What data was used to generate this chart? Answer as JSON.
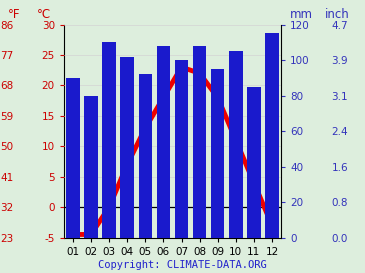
{
  "months": [
    "01",
    "02",
    "03",
    "04",
    "05",
    "06",
    "07",
    "08",
    "09",
    "10",
    "11",
    "12"
  ],
  "temperature_C": [
    -4.5,
    -4.5,
    0.0,
    7.0,
    13.0,
    18.0,
    23.0,
    22.0,
    18.0,
    11.0,
    4.0,
    -3.0
  ],
  "precipitation_mm": [
    90,
    80,
    110,
    102,
    92,
    108,
    100,
    108,
    95,
    105,
    85,
    115
  ],
  "bar_color": "#1a1acc",
  "line_color": "#ee0000",
  "left_axis_color": "#cc0000",
  "right_axis_color": "#3333bb",
  "background_color": "#ddeedd",
  "plot_bg_color": "#ddeedd",
  "temp_ylim": [
    -5,
    30
  ],
  "temp_yticks": [
    -5,
    0,
    5,
    10,
    15,
    20,
    25,
    30
  ],
  "temp_yticklabels_C": [
    "-5",
    "0",
    "5",
    "10",
    "15",
    "20",
    "25",
    "30"
  ],
  "temp_yticklabels_F": [
    "23",
    "32",
    "41",
    "50",
    "59",
    "68",
    "77",
    "86"
  ],
  "precip_ylim": [
    0,
    120
  ],
  "precip_yticks": [
    0,
    20,
    40,
    60,
    80,
    100,
    120
  ],
  "precip_yticklabels_mm": [
    "0",
    "20",
    "40",
    "60",
    "80",
    "100",
    "120"
  ],
  "precip_yticklabels_inch": [
    "0.0",
    "0.8",
    "1.6",
    "2.4",
    "3.1",
    "3.9",
    "4.7"
  ],
  "copyright_text": "Copyright: CLIMATE-DATA.ORG",
  "copyright_color": "#2222cc",
  "label_F": "°F",
  "label_C": "°C",
  "label_mm": "mm",
  "label_inch": "inch",
  "line_width": 3.5,
  "tick_fontsize": 7.5,
  "header_fontsize": 8.5
}
